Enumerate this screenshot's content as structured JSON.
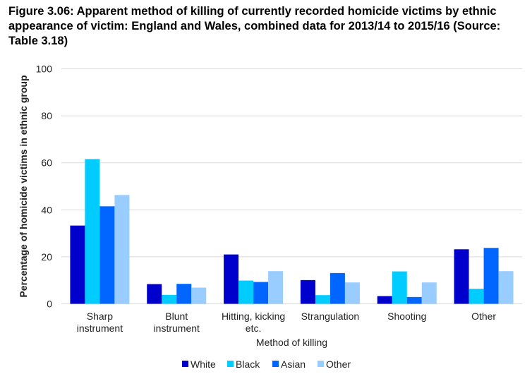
{
  "chart_data": {
    "type": "bar",
    "title": "Figure 3.06: Apparent method of killing of currently recorded homicide victims by ethnic appearance of victim: England and Wales, combined data for 2013/14 to 2015/16 (Source: Table 3.18)",
    "xlabel": "Method of killing",
    "ylabel": "Percentage of homicide victims in ethnic group",
    "ylim": [
      0,
      100
    ],
    "yticks": [
      0,
      20,
      40,
      60,
      80,
      100
    ],
    "grid": true,
    "legend": "bottom",
    "categories": [
      [
        "Sharp",
        "instrument"
      ],
      [
        "Blunt",
        "instrument"
      ],
      [
        "Hitting, kicking",
        "etc."
      ],
      [
        "Strangulation"
      ],
      [
        "Shooting"
      ],
      [
        "Other"
      ]
    ],
    "series": [
      {
        "name": "White",
        "color": "#0000CC",
        "values": [
          33.3,
          8.4,
          21.0,
          10.1,
          3.3,
          23.2
        ]
      },
      {
        "name": "Black",
        "color": "#00CCFF",
        "values": [
          61.6,
          3.8,
          9.9,
          3.7,
          13.8,
          6.4
        ]
      },
      {
        "name": "Asian",
        "color": "#0066FF",
        "values": [
          41.5,
          8.5,
          9.3,
          13.1,
          2.9,
          23.8
        ]
      },
      {
        "name": "Other",
        "color": "#99CCFF",
        "values": [
          46.3,
          6.9,
          13.9,
          9.1,
          9.1,
          13.9
        ]
      }
    ]
  }
}
